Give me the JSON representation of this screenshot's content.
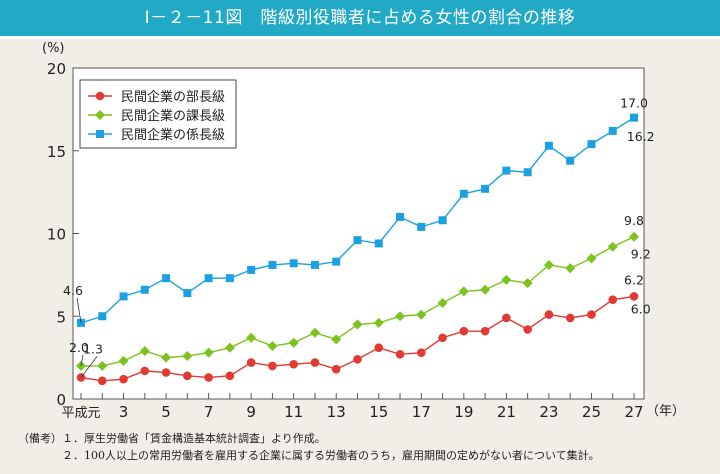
{
  "title": "Ⅰ－２－11図　階級別役職者に占める女性の割合の推移",
  "chart_data": {
    "type": "line",
    "title": "Ⅰ－２－11図　階級別役職者に占める女性の割合の推移",
    "ylabel": "(%)",
    "xlabel": "（年）",
    "ylim": [
      0,
      20
    ],
    "yticks": [
      0,
      5,
      10,
      15,
      20
    ],
    "x": [
      1,
      2,
      3,
      4,
      5,
      6,
      7,
      8,
      9,
      10,
      11,
      12,
      13,
      14,
      15,
      16,
      17,
      18,
      19,
      20,
      21,
      22,
      23,
      24,
      25,
      26,
      27
    ],
    "xtick_labels": [
      {
        "x": 1,
        "label": "平成元"
      },
      {
        "x": 3,
        "label": "3"
      },
      {
        "x": 5,
        "label": "5"
      },
      {
        "x": 7,
        "label": "7"
      },
      {
        "x": 9,
        "label": "9"
      },
      {
        "x": 11,
        "label": "11"
      },
      {
        "x": 13,
        "label": "13"
      },
      {
        "x": 15,
        "label": "15"
      },
      {
        "x": 17,
        "label": "17"
      },
      {
        "x": 19,
        "label": "19"
      },
      {
        "x": 21,
        "label": "21"
      },
      {
        "x": 23,
        "label": "23"
      },
      {
        "x": 25,
        "label": "25"
      },
      {
        "x": 27,
        "label": "27"
      }
    ],
    "grid": false,
    "legend": "top-left",
    "series": [
      {
        "name": "民間企業の部長級",
        "color": "#e03a32",
        "marker": "circle",
        "values": [
          1.3,
          1.1,
          1.2,
          1.7,
          1.6,
          1.4,
          1.3,
          1.4,
          2.2,
          2.0,
          2.1,
          2.2,
          1.8,
          2.4,
          3.1,
          2.7,
          2.8,
          3.7,
          4.1,
          4.1,
          4.9,
          4.2,
          5.1,
          4.9,
          5.1,
          6.0,
          6.2
        ]
      },
      {
        "name": "民間企業の課長級",
        "color": "#7dc21e",
        "marker": "diamond",
        "values": [
          2.0,
          2.0,
          2.3,
          2.9,
          2.5,
          2.6,
          2.8,
          3.1,
          3.7,
          3.2,
          3.4,
          4.0,
          3.6,
          4.5,
          4.6,
          5.0,
          5.1,
          5.8,
          6.5,
          6.6,
          7.2,
          7.0,
          8.1,
          7.9,
          8.5,
          9.2,
          9.8
        ]
      },
      {
        "name": "民間企業の係長級",
        "color": "#1ba1e2",
        "marker": "square",
        "values": [
          4.6,
          5.0,
          6.2,
          6.6,
          7.3,
          6.4,
          7.3,
          7.3,
          7.8,
          8.1,
          8.2,
          8.1,
          8.3,
          9.6,
          9.4,
          11.0,
          10.4,
          10.8,
          12.4,
          12.7,
          13.8,
          13.7,
          15.3,
          14.4,
          15.4,
          16.2,
          17.0
        ]
      }
    ],
    "annotations": [
      {
        "series": 2,
        "x": 1,
        "text": "4.6"
      },
      {
        "series": 1,
        "x": 1,
        "text": "2.0"
      },
      {
        "series": 0,
        "x": 1,
        "text": "1.3"
      },
      {
        "series": 2,
        "x": 27,
        "text": "17.0"
      },
      {
        "series": 2,
        "x": 26,
        "text": "16.2"
      },
      {
        "series": 1,
        "x": 27,
        "text": "9.8"
      },
      {
        "series": 1,
        "x": 26,
        "text": "9.2"
      },
      {
        "series": 0,
        "x": 27,
        "text": "6.2"
      },
      {
        "series": 0,
        "x": 26,
        "text": "6.0"
      }
    ]
  },
  "notes": [
    "（備考）１．厚生労働省「賃金構造基本統計調査」より作成。",
    "２．100人以上の常用労働者を雇用する企業に属する労働者のうち，雇用期間の定めがない者について集計。"
  ]
}
